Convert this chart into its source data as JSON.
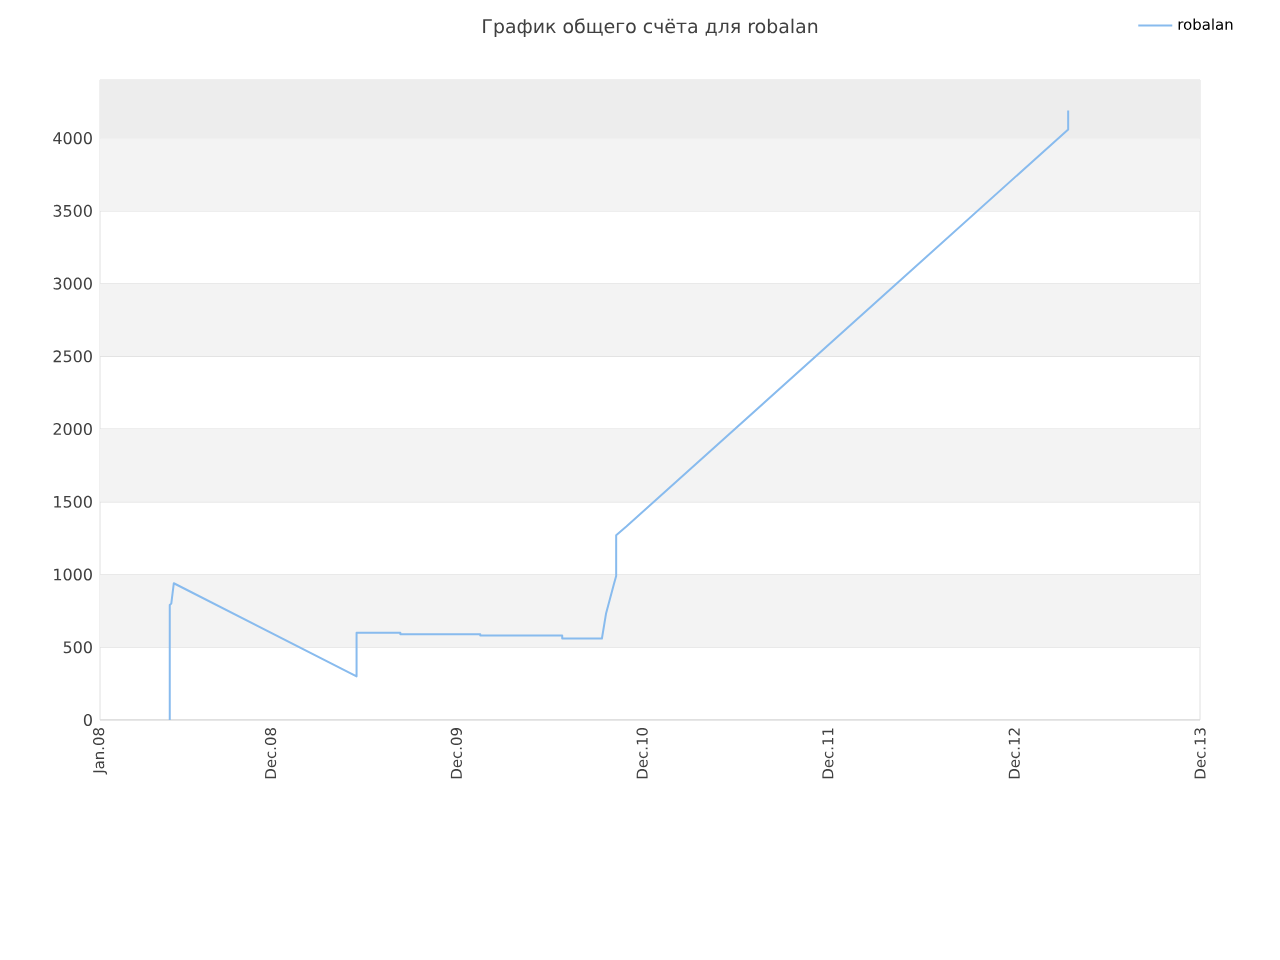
{
  "chart_data": {
    "type": "line",
    "title": "График общего счёта для robalan",
    "x": [
      "2008-05-17",
      "2008-05-17",
      "2008-05-20",
      "2008-05-25",
      "2009-05-19",
      "2009-05-19",
      "2009-08-13",
      "2009-08-13",
      "2010-01-17",
      "2010-01-17",
      "2010-06-27",
      "2010-06-27",
      "2010-09-13",
      "2010-09-21",
      "2010-10-07",
      "2010-10-11",
      "2010-10-11",
      "2010-10-31",
      "2013-03-17",
      "2013-03-17"
    ],
    "series": [
      {
        "name": "robalan",
        "color": "#88bbee",
        "values": [
          0,
          790,
          800,
          940,
          300,
          600,
          600,
          590,
          590,
          580,
          580,
          560,
          560,
          730,
          940,
          990,
          1270,
          1330,
          4060,
          4190
        ]
      }
    ],
    "xlim": [
      "2008-01-01",
      "2013-12-01"
    ],
    "xticks": [
      {
        "value": "2008-01-01",
        "label": "Jan.08"
      },
      {
        "value": "2008-12-01",
        "label": "Dec.08"
      },
      {
        "value": "2009-12-01",
        "label": "Dec.09"
      },
      {
        "value": "2010-12-01",
        "label": "Dec.10"
      },
      {
        "value": "2011-12-01",
        "label": "Dec.11"
      },
      {
        "value": "2012-12-01",
        "label": "Dec.12"
      },
      {
        "value": "2013-12-01",
        "label": "Dec.13"
      }
    ],
    "ylim": [
      0,
      4400
    ],
    "yticks": [
      0,
      500,
      1000,
      1500,
      2000,
      2500,
      3000,
      3500,
      4000
    ],
    "bands": [
      {
        "axis": "y",
        "from": 500,
        "to": 1000,
        "color": "#f3f3f3"
      },
      {
        "axis": "y",
        "from": 1500,
        "to": 2000,
        "color": "#f3f3f3"
      },
      {
        "axis": "y",
        "from": 2500,
        "to": 3000,
        "color": "#f3f3f3"
      },
      {
        "axis": "y",
        "from": 3500,
        "to": 4000,
        "color": "#f3f3f3"
      },
      {
        "axis": "y",
        "from": 4000,
        "to": 4400,
        "color": "#ededed"
      }
    ],
    "grid": "y",
    "legend": "top right",
    "line_style": "solid"
  }
}
